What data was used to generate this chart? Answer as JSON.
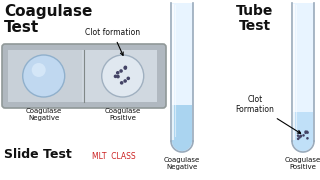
{
  "bg_color": "#ffffff",
  "title_left": "Coagulase\nTest",
  "title_right": "Tube\nTest",
  "slide_label": "Slide Test",
  "mlt_label": "MLT  CLASS",
  "mlt_color": "#cc2222",
  "clot_formation_slide": "Clot formation",
  "clot_formation_tube": "Clot\nFormation",
  "neg_label": "Coagulase\nNegative",
  "pos_label": "Coagulase\nPositive",
  "slide_bg": "#b0b8c0",
  "slide_bg2": "#c8d0d8",
  "slide_border": "#909898",
  "circle_fill_neg": "#c0d8f0",
  "circle_fill_pos": "#e0e8f0",
  "circle_edge_neg": "#90b0cc",
  "circle_edge_pos": "#a0b0c0",
  "tube_body_color": "#ddeeff",
  "tube_edge_color": "#99aabb",
  "tube_fill_neg": "#aad4f0",
  "tube_fill_pos": "#c0e0f8",
  "dot_color": "#444466",
  "white_color": "#ffffff",
  "text_color": "#111111"
}
